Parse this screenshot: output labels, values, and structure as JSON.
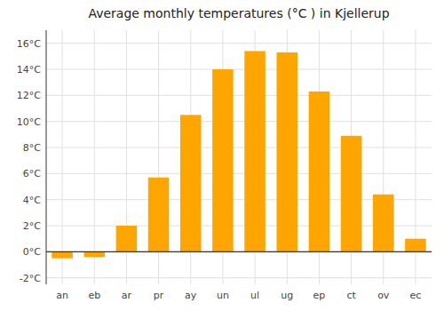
{
  "chart_data": {
    "type": "bar",
    "title": "Average monthly temperatures (°C ) in Kjellerup",
    "categories": [
      "an",
      "eb",
      "ar",
      "pr",
      "ay",
      "un",
      "ul",
      "ug",
      "ep",
      "ct",
      "ov",
      "ec"
    ],
    "values": [
      -0.5,
      -0.4,
      2.0,
      5.7,
      10.5,
      14.0,
      15.4,
      15.3,
      12.3,
      8.9,
      4.4,
      1.0
    ],
    "color": "#FFA500",
    "ylim": [
      -2.5,
      17.0
    ],
    "yticks": [
      {
        "value": -2,
        "label": "-2°C"
      },
      {
        "value": 0,
        "label": "0°C"
      },
      {
        "value": 2,
        "label": "2°C"
      },
      {
        "value": 4,
        "label": "4°C"
      },
      {
        "value": 6,
        "label": "6°C"
      },
      {
        "value": 8,
        "label": "8°C"
      },
      {
        "value": 10,
        "label": "10°C"
      },
      {
        "value": 12,
        "label": "12°C"
      },
      {
        "value": 14,
        "label": "14°C"
      },
      {
        "value": 16,
        "label": "16°C"
      }
    ],
    "grid": true
  }
}
